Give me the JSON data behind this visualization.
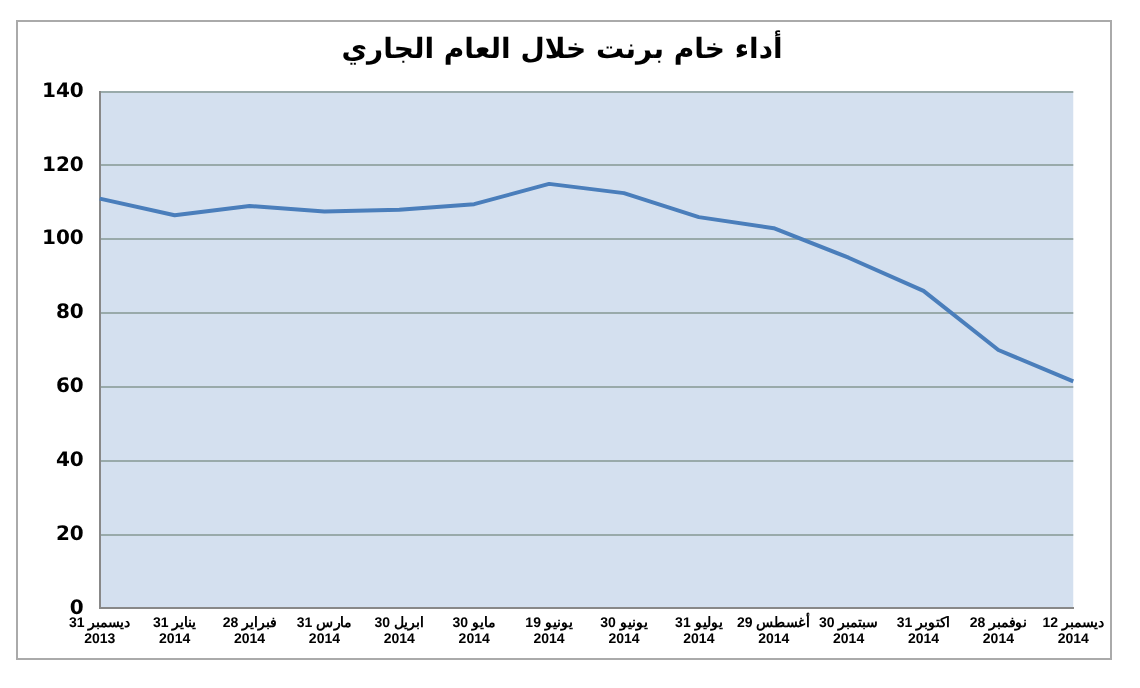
{
  "chart_data": {
    "type": "line",
    "title": "أداء خام برنت خلال العام الجاري",
    "categories": [
      "31 ديسمبر 2013",
      "31 يناير 2014",
      "28 فبراير 2014",
      "31 مارس 2014",
      "30 ابريل 2014",
      "30 مايو 2014",
      "19 يونيو 2014",
      "30 يونيو 2014",
      "31 يوليو 2014",
      "29 أغسطس 2014",
      "30 سبتمبر 2014",
      "31 اكتوبر 2014",
      "28 نوفمبر 2014",
      "12 ديسمبر 2014"
    ],
    "series": [
      {
        "color": "#4a7ebb",
        "values": [
          111,
          106.5,
          109,
          107.5,
          108,
          109.5,
          115,
          112.5,
          106,
          103,
          95,
          86,
          70,
          61.5
        ]
      }
    ],
    "ylim": [
      0,
      140
    ],
    "yticks": [
      0,
      20,
      40,
      60,
      80,
      100,
      120,
      140
    ],
    "grid": "y",
    "legend": false,
    "marker": "none",
    "line_style": "solid"
  }
}
